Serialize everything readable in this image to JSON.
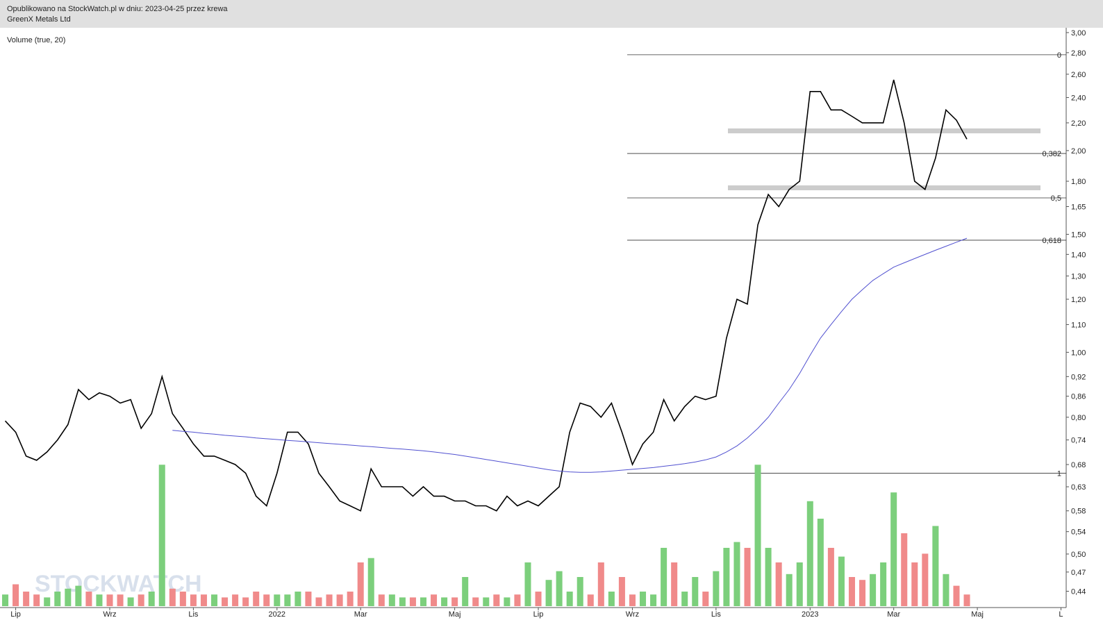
{
  "header": {
    "line1": "Opublikowano na StockWatch.pl w dniu: 2023-04-25 przez krewa",
    "line2": "GreenX Metals Ltd"
  },
  "chart_data": {
    "type": "line",
    "subtitle": "Volume (true, 20)",
    "watermark": "STOCKWATCH",
    "log_scale": true,
    "categories": [
      null,
      "Lip",
      null,
      null,
      null,
      null,
      null,
      null,
      null,
      null,
      "Wrz",
      null,
      null,
      null,
      null,
      null,
      null,
      null,
      "Lis",
      null,
      null,
      null,
      null,
      null,
      null,
      null,
      "2022",
      null,
      null,
      null,
      null,
      null,
      null,
      null,
      "Mar",
      null,
      null,
      null,
      null,
      null,
      null,
      null,
      null,
      "Maj",
      null,
      null,
      null,
      null,
      null,
      null,
      null,
      "Lip",
      null,
      null,
      null,
      null,
      null,
      null,
      null,
      null,
      "Wrz",
      null,
      null,
      null,
      null,
      null,
      null,
      null,
      "Lis",
      null,
      null,
      null,
      null,
      null,
      null,
      null,
      null,
      "2023",
      null,
      null,
      null,
      null,
      null,
      null,
      null,
      "Mar",
      null,
      null,
      null,
      null,
      null,
      null,
      null,
      "Maj",
      null,
      null,
      null,
      null,
      null,
      null,
      null,
      "L"
    ],
    "series": [
      {
        "color": "#000000",
        "values": [
          0.79,
          0.76,
          0.7,
          0.69,
          0.71,
          0.74,
          0.78,
          0.88,
          0.85,
          0.87,
          0.86,
          0.84,
          0.85,
          0.77,
          0.81,
          0.92,
          0.81,
          0.77,
          0.73,
          0.7,
          0.7,
          0.69,
          0.68,
          0.66,
          0.61,
          0.59,
          0.66,
          0.76,
          0.76,
          0.73,
          0.66,
          0.63,
          0.6,
          0.59,
          0.58,
          0.67,
          0.63,
          0.63,
          0.63,
          0.61,
          0.63,
          0.61,
          0.61,
          0.6,
          0.6,
          0.59,
          0.59,
          0.58,
          0.61,
          0.59,
          0.6,
          0.59,
          0.61,
          0.63,
          0.76,
          0.84,
          0.83,
          0.8,
          0.84,
          0.76,
          0.68,
          0.73,
          0.76,
          0.85,
          0.79,
          0.83,
          0.86,
          0.85,
          0.86,
          1.05,
          1.2,
          1.18,
          1.55,
          1.72,
          1.65,
          1.75,
          1.8,
          2.45,
          2.45,
          2.3,
          2.3,
          2.25,
          2.2,
          2.2,
          2.2,
          2.55,
          2.2,
          1.8,
          1.75,
          1.95,
          2.3,
          2.22,
          2.08,
          null,
          null,
          null,
          null,
          null,
          null,
          null,
          null,
          null
        ]
      },
      {
        "color": "#5050d0",
        "values": [
          null,
          null,
          null,
          null,
          null,
          null,
          null,
          null,
          null,
          null,
          null,
          null,
          null,
          null,
          null,
          null,
          0.765,
          0.762,
          0.76,
          0.757,
          0.755,
          0.752,
          0.75,
          0.748,
          0.745,
          0.743,
          0.741,
          0.739,
          0.737,
          0.735,
          0.733,
          0.731,
          0.729,
          0.727,
          0.725,
          0.723,
          0.721,
          0.719,
          0.717,
          0.715,
          0.713,
          0.71,
          0.707,
          0.704,
          0.7,
          0.696,
          0.692,
          0.688,
          0.684,
          0.68,
          0.676,
          0.672,
          0.668,
          0.665,
          0.663,
          0.662,
          0.662,
          0.663,
          0.665,
          0.667,
          0.669,
          0.671,
          0.673,
          0.676,
          0.679,
          0.682,
          0.686,
          0.691,
          0.698,
          0.71,
          0.725,
          0.745,
          0.77,
          0.8,
          0.84,
          0.88,
          0.93,
          0.99,
          1.05,
          1.1,
          1.15,
          1.2,
          1.24,
          1.28,
          1.31,
          1.34,
          1.36,
          1.38,
          1.4,
          1.42,
          1.44,
          1.46,
          1.48,
          null,
          null,
          null,
          null,
          null,
          null,
          null,
          null,
          null
        ]
      },
      {
        "type": "bar",
        "axis": "y2",
        "up_color": "#7ccf7c",
        "down_color": "#f08a8a",
        "values": [
          8,
          15,
          10,
          8,
          6,
          10,
          12,
          14,
          10,
          8,
          8,
          8,
          6,
          8,
          10,
          97,
          12,
          10,
          8,
          8,
          8,
          6,
          8,
          6,
          10,
          8,
          8,
          8,
          10,
          10,
          6,
          8,
          8,
          10,
          30,
          33,
          8,
          8,
          6,
          6,
          6,
          8,
          6,
          6,
          20,
          6,
          6,
          8,
          6,
          8,
          30,
          10,
          18,
          24,
          10,
          20,
          8,
          30,
          10,
          20,
          8,
          10,
          8,
          40,
          30,
          10,
          20,
          10,
          24,
          40,
          44,
          40,
          97,
          40,
          30,
          22,
          30,
          72,
          60,
          40,
          34,
          20,
          18,
          22,
          30,
          78,
          50,
          30,
          36,
          55,
          22,
          14,
          8,
          null,
          null,
          null,
          null,
          null,
          null,
          null,
          null,
          null
        ]
      }
    ],
    "levels": [
      {
        "value": 2.78,
        "label": "0"
      },
      {
        "value": 1.98,
        "label": "0,382"
      },
      {
        "value": 1.7,
        "label": "0,5"
      },
      {
        "value": 1.47,
        "label": "0,618"
      },
      {
        "value": 0.66,
        "label": "1"
      }
    ],
    "bands": [
      2.14,
      1.76
    ],
    "ylim": [
      0.416,
      3.05
    ],
    "yticks": [
      {
        "value": 3.0,
        "label": "3,00"
      },
      {
        "value": 2.8,
        "label": "2,80"
      },
      {
        "value": 2.6,
        "label": "2,60"
      },
      {
        "value": 2.4,
        "label": "2,40"
      },
      {
        "value": 2.2,
        "label": "2,20"
      },
      {
        "value": 2.0,
        "label": "2,00"
      },
      {
        "value": 1.8,
        "label": "1,80"
      },
      {
        "value": 1.65,
        "label": "1,65"
      },
      {
        "value": 1.5,
        "label": "1,50"
      },
      {
        "value": 1.4,
        "label": "1,40"
      },
      {
        "value": 1.3,
        "label": "1,30"
      },
      {
        "value": 1.2,
        "label": "1,20"
      },
      {
        "value": 1.1,
        "label": "1,10"
      },
      {
        "value": 1.0,
        "label": "1,00"
      },
      {
        "value": 0.92,
        "label": "0,92"
      },
      {
        "value": 0.86,
        "label": "0,86"
      },
      {
        "value": 0.8,
        "label": "0,80"
      },
      {
        "value": 0.74,
        "label": "0,74"
      },
      {
        "value": 0.68,
        "label": "0,68"
      },
      {
        "value": 0.63,
        "label": "0,63"
      },
      {
        "value": 0.58,
        "label": "0,58"
      },
      {
        "value": 0.54,
        "label": "0,54"
      },
      {
        "value": 0.5,
        "label": "0,50"
      },
      {
        "value": 0.47,
        "label": "0,47"
      },
      {
        "value": 0.44,
        "label": "0,44"
      }
    ],
    "y2lim": [
      0,
      100
    ]
  }
}
